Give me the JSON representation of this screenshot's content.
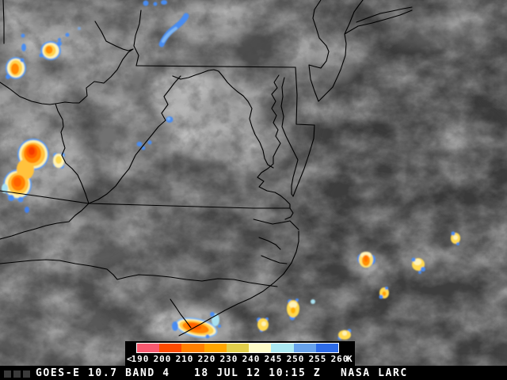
{
  "product": {
    "name": "GOES-E infrared satellite image",
    "region": "US Mid-Atlantic coast"
  },
  "legend": {
    "less_than_symbol": "<",
    "unit": "K",
    "ticks": [
      "190",
      "200",
      "210",
      "220",
      "230",
      "240",
      "245",
      "250",
      "255",
      "260"
    ],
    "colors": [
      "#f85a70",
      "#fd4b00",
      "#ff8000",
      "#ffa600",
      "#e2cf4b",
      "#fdfbc8",
      "#ace9f2",
      "#68a3ec",
      "#2e6ce8"
    ]
  },
  "footer": {
    "satellite": "GOES-E 10.7 BAND 4",
    "timestamp": "18 JUL 12 10:15 Z",
    "credit": "NASA LARC"
  },
  "palette": {
    "ocean_gray": "#3d3d3d",
    "land_gray": "#4c4c4c",
    "cloud_gray": "#a8a8a8",
    "border_black": "#000000",
    "cold_core_orange": "#ff6000",
    "cold_fringe_blue": "#4a8cf0"
  }
}
